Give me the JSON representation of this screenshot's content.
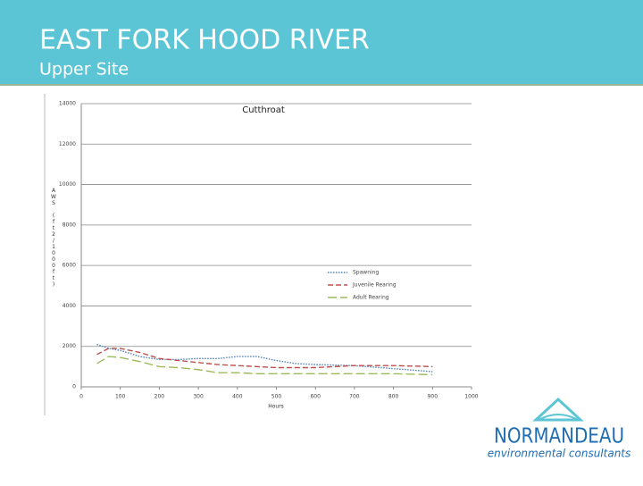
{
  "header": {
    "title": "EAST FORK HOOD RIVER",
    "subtitle": "Upper Site"
  },
  "chart_data": {
    "type": "line",
    "title": "Cutthroat",
    "x_label": "Hours",
    "y_label": "AWS (ft2/1000ft)",
    "x": [
      40,
      70,
      100,
      150,
      200,
      250,
      300,
      350,
      400,
      450,
      500,
      550,
      600,
      700,
      800,
      900
    ],
    "series": [
      {
        "name": "Spawning",
        "color": "#4f81bd",
        "style": "dotted",
        "values": [
          2100,
          1900,
          1800,
          1500,
          1350,
          1350,
          1400,
          1400,
          1500,
          1500,
          1300,
          1150,
          1100,
          1050,
          900,
          750
        ]
      },
      {
        "name": "Juvenile Rearing",
        "color": "#c0504d",
        "style": "dashed",
        "values": [
          1600,
          1900,
          1900,
          1700,
          1400,
          1300,
          1200,
          1100,
          1050,
          1000,
          950,
          950,
          950,
          1050,
          1050,
          1000
        ]
      },
      {
        "name": "Adult Rearing",
        "color": "#9bbb59",
        "style": "longdash",
        "values": [
          1150,
          1500,
          1450,
          1250,
          1000,
          950,
          850,
          700,
          700,
          650,
          650,
          650,
          650,
          650,
          650,
          600
        ]
      }
    ],
    "xlim": [
      0,
      1000
    ],
    "xticks": [
      0,
      100,
      200,
      300,
      400,
      500,
      600,
      700,
      800,
      900,
      1000
    ],
    "ylim": [
      0,
      14000
    ],
    "yticks": [
      0,
      2000,
      4000,
      6000,
      8000,
      10000,
      12000,
      14000
    ],
    "grid": true,
    "legend": "right"
  },
  "logo": {
    "name": "NORMANDEAU",
    "tagline": "environmental consultants"
  }
}
